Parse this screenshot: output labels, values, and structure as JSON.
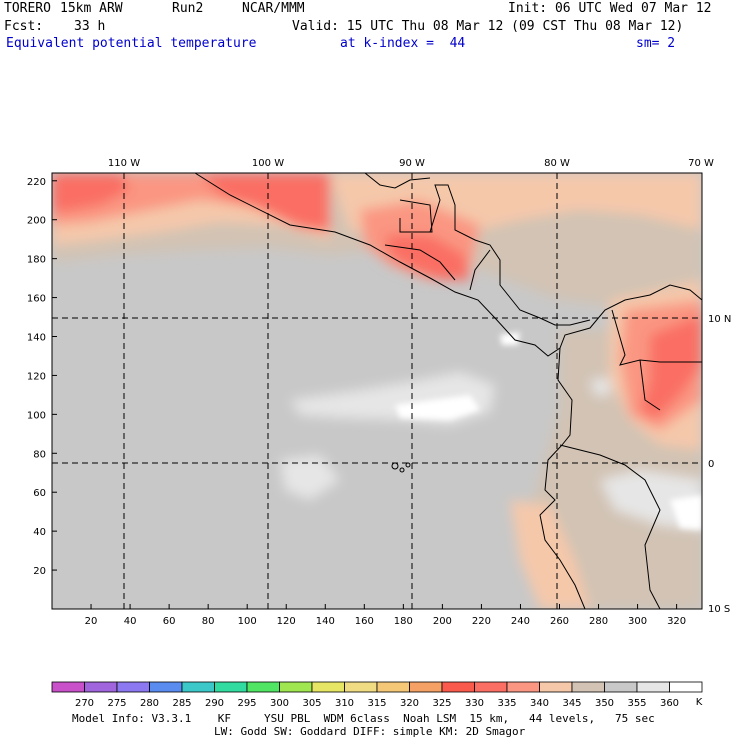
{
  "header": {
    "model": "TORERO",
    "resolution": "15km ARW",
    "run": "Run2",
    "org": "NCAR/MMM",
    "init": "Init: 06 UTC Wed 07 Mar 12",
    "fcst_label": "Fcst:",
    "fcst_value": "33 h",
    "valid": "Valid: 15 UTC Thu 08 Mar 12 (09 CST Thu 08 Mar 12)",
    "field": "Equivalent potential temperature",
    "level": "at k-index =  44",
    "smooth": "sm= 2"
  },
  "axes": {
    "x_ticks": [
      "20",
      "40",
      "60",
      "80",
      "100",
      "120",
      "140",
      "160",
      "180",
      "200",
      "220",
      "240",
      "260",
      "280",
      "300",
      "320"
    ],
    "y_ticks": [
      "20",
      "40",
      "60",
      "80",
      "100",
      "120",
      "140",
      "160",
      "180",
      "200",
      "220"
    ],
    "lon_labels": [
      "110 W",
      "100 W",
      "90 W",
      "80 W",
      "70 W"
    ],
    "lat_labels": [
      "10 N",
      "0",
      "10 S"
    ]
  },
  "colorbar": {
    "labels": [
      "270",
      "275",
      "280",
      "285",
      "290",
      "295",
      "300",
      "305",
      "310",
      "315",
      "320",
      "325",
      "330",
      "335",
      "340",
      "345",
      "350",
      "355",
      "360"
    ],
    "unit": "K",
    "colors": [
      "#c850c8",
      "#a064dc",
      "#8c78f0",
      "#5a8cf0",
      "#3cc8c8",
      "#32dca0",
      "#50e664",
      "#a0e650",
      "#e6e664",
      "#f0dc82",
      "#f5c878",
      "#f5a064",
      "#fa5a4b",
      "#fa6e64",
      "#fa9682",
      "#f5c8aa",
      "#d2c3b4",
      "#c8c8c8",
      "#e6e6e6",
      "#ffffff"
    ]
  },
  "footer": {
    "line1": "Model Info: V3.3.1    KF     YSU PBL  WDM 6class  Noah LSM  15 km,   44 levels,   75 sec",
    "line2": "LW: Godd SW: Goddard DIFF: simple KM: 2D Smagor"
  }
}
